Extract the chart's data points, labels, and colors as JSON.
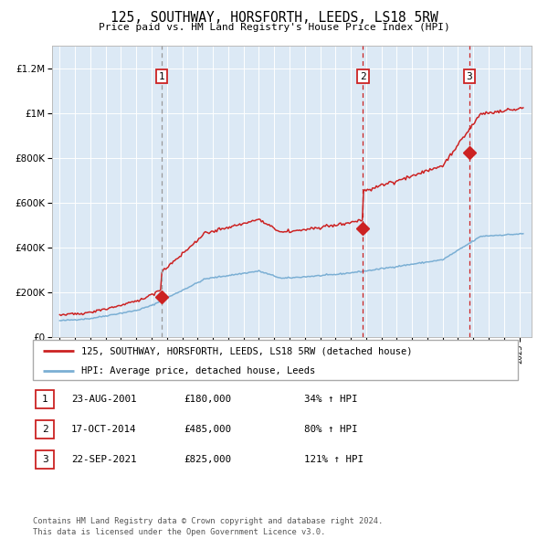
{
  "title": "125, SOUTHWAY, HORSFORTH, LEEDS, LS18 5RW",
  "subtitle": "Price paid vs. HM Land Registry's House Price Index (HPI)",
  "plot_bg_color": "#dce9f5",
  "sale_dates_num": [
    2001.644,
    2014.792,
    2021.728
  ],
  "sale_prices": [
    180000,
    485000,
    825000
  ],
  "sale_labels": [
    "1",
    "2",
    "3"
  ],
  "legend_line1": "125, SOUTHWAY, HORSFORTH, LEEDS, LS18 5RW (detached house)",
  "legend_line2": "HPI: Average price, detached house, Leeds",
  "table_rows": [
    [
      "1",
      "23-AUG-2001",
      "£180,000",
      "34% ↑ HPI"
    ],
    [
      "2",
      "17-OCT-2014",
      "£485,000",
      "80% ↑ HPI"
    ],
    [
      "3",
      "22-SEP-2021",
      "£825,000",
      "121% ↑ HPI"
    ]
  ],
  "footer": "Contains HM Land Registry data © Crown copyright and database right 2024.\nThis data is licensed under the Open Government Licence v3.0.",
  "red_line_color": "#cc2222",
  "blue_line_color": "#7bafd4",
  "ylim": [
    0,
    1300000
  ],
  "xlim_start": 1994.5,
  "xlim_end": 2025.8,
  "hpi_seed": 42,
  "hpi_noise_std": 1500,
  "red_noise_std": 2500
}
